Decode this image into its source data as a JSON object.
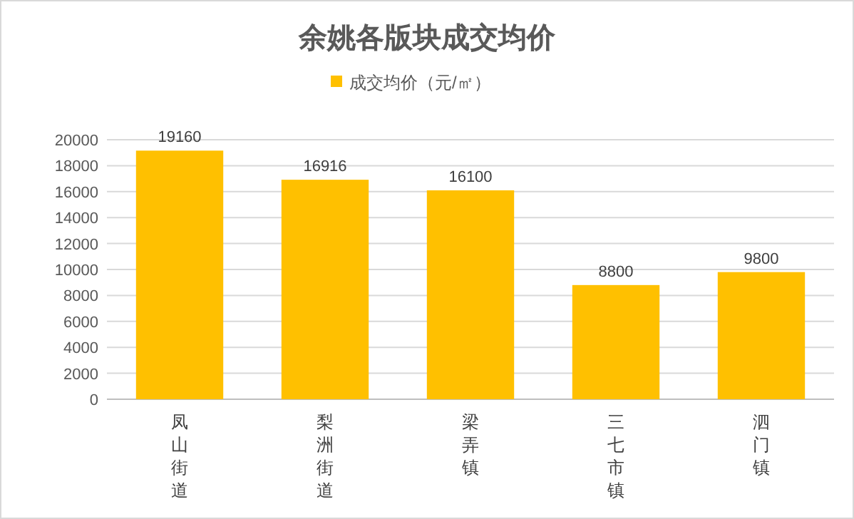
{
  "chart_data": {
    "type": "bar",
    "title": "余姚各版块成交均价",
    "categories": [
      "凤山街道",
      "梨洲街道",
      "梁弄镇",
      "三七市镇",
      "泗门镇"
    ],
    "series": [
      {
        "name": "成交均价（元/㎡）",
        "color": "#ffc000",
        "values": [
          19160,
          16916,
          16100,
          8800,
          9800
        ]
      }
    ],
    "ylim": [
      0,
      20000
    ],
    "yticks": [
      0,
      2000,
      4000,
      6000,
      8000,
      10000,
      12000,
      14000,
      16000,
      18000,
      20000
    ],
    "grid": "y",
    "legend": "top",
    "data_labels": true
  }
}
